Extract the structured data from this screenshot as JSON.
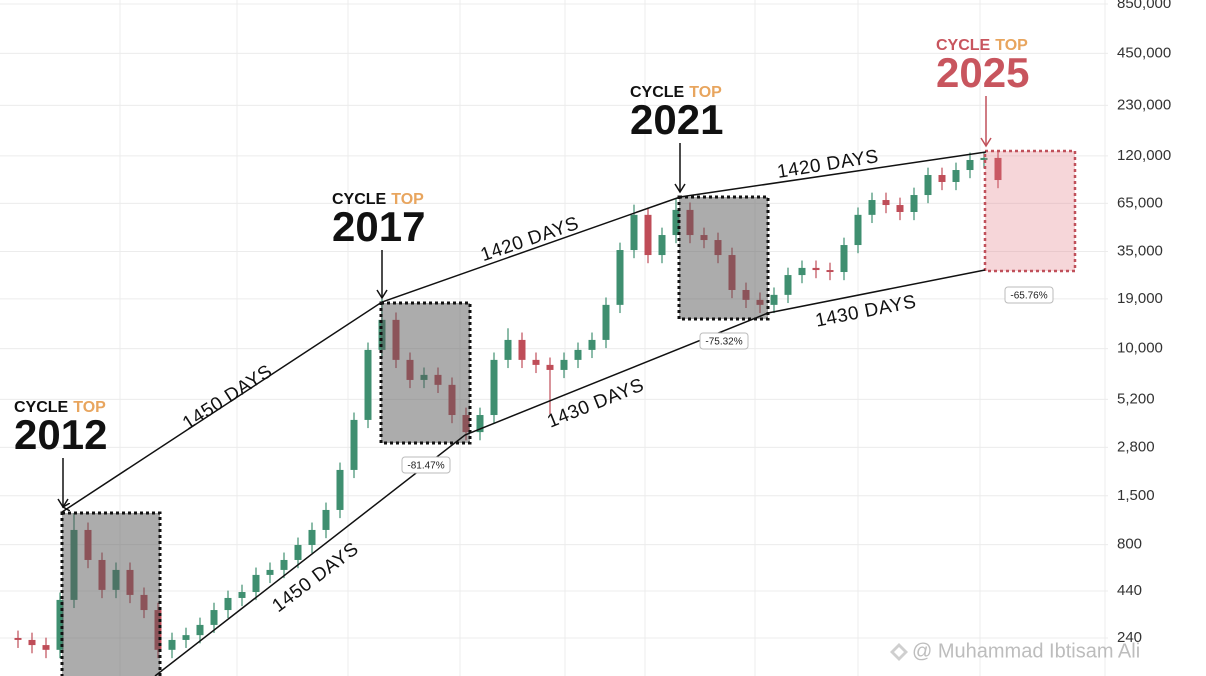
{
  "chart_data": {
    "type": "candlestick",
    "log_scale": true,
    "grid": true,
    "ylim": [
      147,
      895000
    ],
    "yticks": [
      {
        "value": 850000,
        "label": "850,000"
      },
      {
        "value": 450000,
        "label": "450,000"
      },
      {
        "value": 230000,
        "label": "230,000"
      },
      {
        "value": 120000,
        "label": "120,000"
      },
      {
        "value": 65000,
        "label": "65,000"
      },
      {
        "value": 35000,
        "label": "35,000"
      },
      {
        "value": 19000,
        "label": "19,000"
      },
      {
        "value": 10000,
        "label": "10,000"
      },
      {
        "value": 5200,
        "label": "5,200"
      },
      {
        "value": 2800,
        "label": "2,800"
      },
      {
        "value": 1500,
        "label": "1,500"
      },
      800,
      440,
      240
    ],
    "series": [
      {
        "up_color": "#3f8f70",
        "down_color": "#bf4d58",
        "open": [
          240,
          234,
          219,
          206,
          392,
          966,
          656,
          446,
          577,
          418,
          344,
          206,
          234,
          249,
          284,
          344,
          402,
          434,
          541,
          577,
          656,
          796,
          966,
          1250,
          2094,
          3990,
          9840,
          14490,
          8650,
          6680,
          7130,
          6270,
          4250,
          3410,
          4250,
          8650,
          11190,
          8650,
          8110,
          7600,
          8650,
          9840,
          11190,
          17580,
          35650,
          56100,
          33420,
          43250,
          59800,
          43250,
          40550,
          33420,
          21300,
          18750,
          17580,
          20000,
          25820,
          28310,
          27540,
          26850,
          38020,
          56100,
          67920,
          63680,
          58210,
          72440,
          93760,
          85700,
          100000,
          113800,
          116900
        ],
        "high": [
          264,
          257,
          241,
          431,
          1200,
          1063,
          722,
          635,
          635,
          460,
          378,
          257,
          274,
          312,
          378,
          442,
          477,
          595,
          635,
          722,
          876,
          1063,
          1375,
          2303,
          4389,
          10820,
          19000,
          15940,
          9515,
          7843,
          7843,
          6897,
          4675,
          4675,
          9515,
          13000,
          12310,
          9515,
          8921,
          9515,
          10820,
          12310,
          19340,
          39220,
          64000,
          61710,
          47580,
          69000,
          65780,
          47580,
          44610,
          36760,
          23430,
          20630,
          22000,
          28400,
          31140,
          31140,
          30290,
          41820,
          61710,
          74710,
          74710,
          70050,
          79680,
          103100,
          103100,
          110000,
          125200,
          126000,
          128600
        ],
        "low": [
          211,
          197,
          185,
          185,
          353,
          590,
          401,
          401,
          376,
          310,
          185,
          185,
          211,
          224,
          256,
          310,
          362,
          391,
          487,
          519,
          590,
          716,
          869,
          1125,
          1885,
          3591,
          8856,
          7785,
          6012,
          6012,
          5643,
          3825,
          3069,
          3069,
          3825,
          7785,
          7785,
          7299,
          4300,
          6840,
          7785,
          8856,
          10070,
          15820,
          32090,
          30080,
          30080,
          38930,
          38930,
          36500,
          30080,
          19170,
          16880,
          15820,
          15820,
          18000,
          23240,
          24790,
          24170,
          24170,
          34220,
          50490,
          57310,
          52390,
          52390,
          65200,
          77130,
          77130,
          90000,
          102400,
          79110
        ],
        "close": [
          234,
          219,
          206,
          392,
          966,
          656,
          446,
          577,
          418,
          344,
          206,
          234,
          249,
          284,
          344,
          402,
          434,
          541,
          577,
          656,
          796,
          966,
          1250,
          2094,
          3990,
          9840,
          14490,
          8650,
          6680,
          7130,
          6270,
          4250,
          3410,
          4250,
          8650,
          11190,
          8650,
          8110,
          7600,
          8650,
          9840,
          11190,
          17580,
          35650,
          56100,
          33420,
          43250,
          59800,
          43250,
          40550,
          33420,
          21300,
          18750,
          17580,
          20000,
          25820,
          28310,
          27540,
          26850,
          38020,
          56100,
          67920,
          63680,
          58210,
          72440,
          93760,
          85700,
          100000,
          113800,
          116900,
          87900
        ]
      }
    ],
    "annotations": {
      "cycle_tops": [
        {
          "cycle": "CYCLE",
          "top": "TOP",
          "year": "2012"
        },
        {
          "cycle": "CYCLE",
          "top": "TOP",
          "year": "2017"
        },
        {
          "cycle": "CYCLE",
          "top": "TOP",
          "year": "2021"
        },
        {
          "cycle": "CYCLE",
          "top": "TOP",
          "year": "2025"
        }
      ],
      "durations": [
        "1450 DAYS",
        "1450 DAYS",
        "1420 DAYS",
        "1430 DAYS",
        "1420 DAYS",
        "1430 DAYS"
      ],
      "drawdowns": [
        "-81.47%",
        "-75.32%",
        "-65.76%"
      ]
    }
  },
  "watermark": "@ Muhammad Ibtisam Ali"
}
